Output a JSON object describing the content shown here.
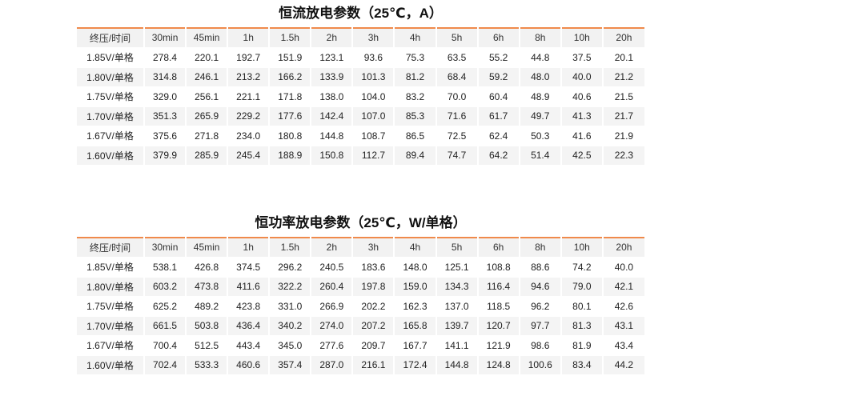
{
  "tables": [
    {
      "title": "恒流放电参数（25℃，A）",
      "header": [
        "终压/时间",
        "30min",
        "45min",
        "1h",
        "1.5h",
        "2h",
        "3h",
        "4h",
        "5h",
        "6h",
        "8h",
        "10h",
        "20h"
      ],
      "rows": [
        [
          "1.85V/单格",
          "278.4",
          "220.1",
          "192.7",
          "151.9",
          "123.1",
          "93.6",
          "75.3",
          "63.5",
          "55.2",
          "44.8",
          "37.5",
          "20.1"
        ],
        [
          "1.80V/单格",
          "314.8",
          "246.1",
          "213.2",
          "166.2",
          "133.9",
          "101.3",
          "81.2",
          "68.4",
          "59.2",
          "48.0",
          "40.0",
          "21.2"
        ],
        [
          "1.75V/单格",
          "329.0",
          "256.1",
          "221.1",
          "171.8",
          "138.0",
          "104.0",
          "83.2",
          "70.0",
          "60.4",
          "48.9",
          "40.6",
          "21.5"
        ],
        [
          "1.70V/单格",
          "351.3",
          "265.9",
          "229.2",
          "177.6",
          "142.4",
          "107.0",
          "85.3",
          "71.6",
          "61.7",
          "49.7",
          "41.3",
          "21.7"
        ],
        [
          "1.67V/单格",
          "375.6",
          "271.8",
          "234.0",
          "180.8",
          "144.8",
          "108.7",
          "86.5",
          "72.5",
          "62.4",
          "50.3",
          "41.6",
          "21.9"
        ],
        [
          "1.60V/单格",
          "379.9",
          "285.9",
          "245.4",
          "188.9",
          "150.8",
          "112.7",
          "89.4",
          "74.7",
          "64.2",
          "51.4",
          "42.5",
          "22.3"
        ]
      ]
    },
    {
      "title": "恒功率放电参数（25℃，W/单格）",
      "header": [
        "终压/时间",
        "30min",
        "45min",
        "1h",
        "1.5h",
        "2h",
        "3h",
        "4h",
        "5h",
        "6h",
        "8h",
        "10h",
        "20h"
      ],
      "rows": [
        [
          "1.85V/单格",
          "538.1",
          "426.8",
          "374.5",
          "296.2",
          "240.5",
          "183.6",
          "148.0",
          "125.1",
          "108.8",
          "88.6",
          "74.2",
          "40.0"
        ],
        [
          "1.80V/单格",
          "603.2",
          "473.8",
          "411.6",
          "322.2",
          "260.4",
          "197.8",
          "159.0",
          "134.3",
          "116.4",
          "94.6",
          "79.0",
          "42.1"
        ],
        [
          "1.75V/单格",
          "625.2",
          "489.2",
          "423.8",
          "331.0",
          "266.9",
          "202.2",
          "162.3",
          "137.0",
          "118.5",
          "96.2",
          "80.1",
          "42.6"
        ],
        [
          "1.70V/单格",
          "661.5",
          "503.8",
          "436.4",
          "340.2",
          "274.0",
          "207.2",
          "165.8",
          "139.7",
          "120.7",
          "97.7",
          "81.3",
          "43.1"
        ],
        [
          "1.67V/单格",
          "700.4",
          "512.5",
          "443.4",
          "345.0",
          "277.6",
          "209.7",
          "167.7",
          "141.1",
          "121.9",
          "98.6",
          "81.9",
          "43.4"
        ],
        [
          "1.60V/单格",
          "702.4",
          "533.3",
          "460.6",
          "357.4",
          "287.0",
          "216.1",
          "172.4",
          "144.8",
          "124.8",
          "100.6",
          "83.4",
          "44.2"
        ]
      ]
    }
  ]
}
